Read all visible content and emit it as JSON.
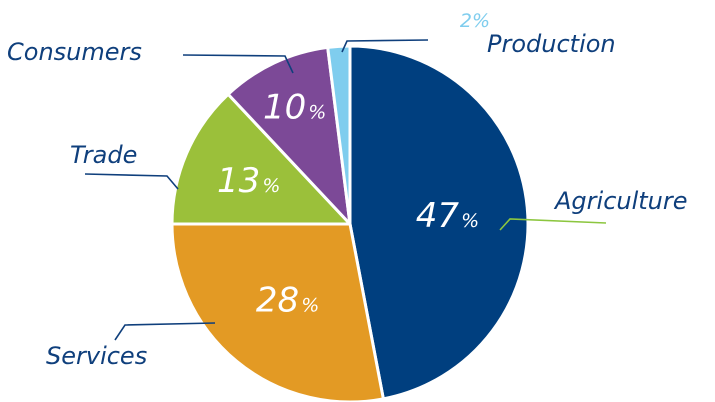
{
  "chart_data": {
    "type": "pie",
    "title": "",
    "slices": [
      {
        "label": "Agriculture",
        "value": 47,
        "color": "#003f7f",
        "leader_color": "#8cc63f"
      },
      {
        "label": "Services",
        "value": 28,
        "color": "#e39a24",
        "leader_color": "#0f3f7c"
      },
      {
        "label": "Trade",
        "value": 13,
        "color": "#9bc03a",
        "leader_color": "#0f3f7c"
      },
      {
        "label": "Consumers",
        "value": 10,
        "color": "#7c4997",
        "leader_color": "#0f3f7c"
      },
      {
        "label": "Production",
        "value": 2,
        "color": "#7fcdee",
        "leader_color": "#0f3f7c"
      }
    ],
    "value_suffix": "%",
    "start_angle": "12 o'clock",
    "direction": "clockwise",
    "legend": "none"
  }
}
